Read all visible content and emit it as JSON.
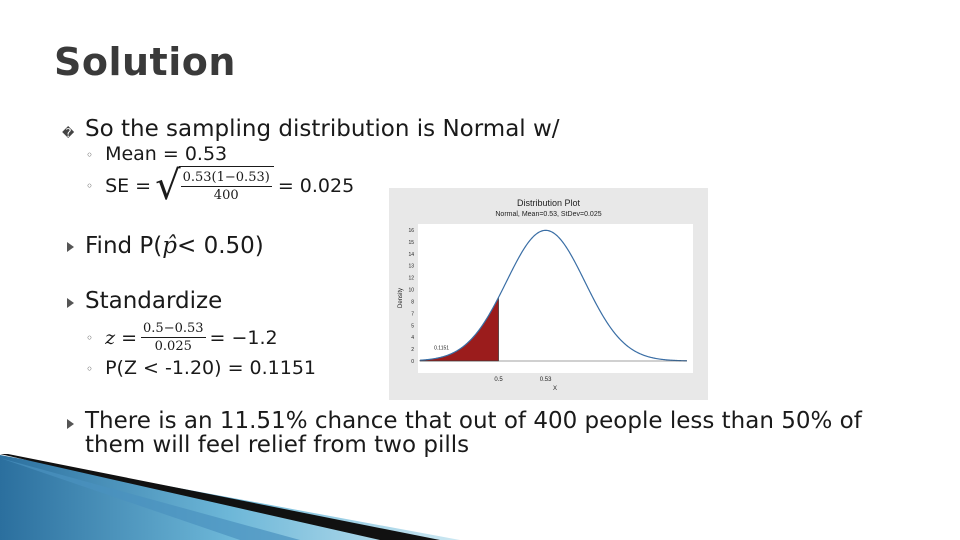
{
  "slide": {
    "title": "Solution",
    "bullet1": {
      "text": "So the sampling distribution is Normal w/",
      "glyph": "�",
      "subs": {
        "mean_label": "Mean = 0.53",
        "se_label": "SE =",
        "se_num": "0.53(1−0.53)",
        "se_den": "400",
        "se_result": "= 0.025"
      }
    },
    "bullet2": {
      "prefix": "Find P(",
      "phat": "p̂",
      "suffix": "< 0.50)"
    },
    "bullet3": {
      "text": "Standardize",
      "z_var": "z",
      "z_eq": "=",
      "z_num": "0.5−0.53",
      "z_den": "0.025",
      "z_result": "= −1.2",
      "prob": "P(Z < -1.20) = 0.1151"
    },
    "bullet4": {
      "line1": "There is an 11.51% chance that out of 400 people less than 50% of",
      "line2": "them will feel relief from two pills"
    },
    "sub_marker": "◦"
  },
  "chart_data": {
    "type": "area",
    "title": "Distribution Plot",
    "subtitle": "Normal, Mean=0.53, StDev=0.025",
    "xlabel": "X",
    "ylabel": "Density",
    "mean": 0.53,
    "sd": 0.025,
    "xlim": [
      0.45,
      0.62
    ],
    "ylim": [
      0,
      16
    ],
    "yticks": [
      "0",
      "2",
      "4",
      "5",
      "7",
      "8",
      "10",
      "12",
      "13",
      "14",
      "15",
      "16"
    ],
    "xticks": [
      {
        "value": 0.5,
        "label": "0.5"
      },
      {
        "value": 0.53,
        "label": "0.53"
      }
    ],
    "shaded_below": 0.5,
    "shaded_label": "0.1151",
    "colors": {
      "curve": "#3a6ea5",
      "shade": "#9b1c1c",
      "panel": "#e8e8e8",
      "plot_bg": "#ffffff"
    }
  }
}
